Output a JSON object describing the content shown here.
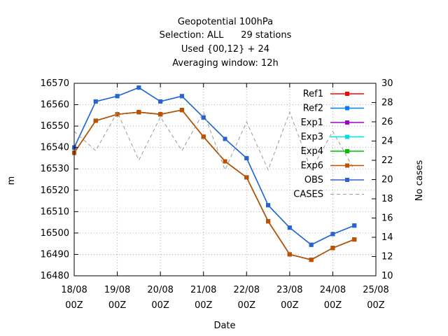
{
  "chart_data": {
    "type": "line",
    "title_lines": [
      "Geopotential 100hPa",
      "Selection: ALL      29 stations",
      "Used {00,12} + 24",
      "Averaging window: 12h"
    ],
    "xlabel": "Date",
    "ylabel": "m",
    "y2label": "No cases",
    "xlim": [
      0,
      14
    ],
    "ylim": [
      16480,
      16570
    ],
    "y2lim": [
      10,
      30
    ],
    "x_ticks": [
      {
        "pos": 0,
        "line1": "18/08",
        "line2": "00Z"
      },
      {
        "pos": 2,
        "line1": "19/08",
        "line2": "00Z"
      },
      {
        "pos": 4,
        "line1": "20/08",
        "line2": "00Z"
      },
      {
        "pos": 6,
        "line1": "21/08",
        "line2": "00Z"
      },
      {
        "pos": 8,
        "line1": "22/08",
        "line2": "00Z"
      },
      {
        "pos": 10,
        "line1": "23/08",
        "line2": "00Z"
      },
      {
        "pos": 12,
        "line1": "24/08",
        "line2": "00Z"
      },
      {
        "pos": 14,
        "line1": "25/08",
        "line2": "00Z"
      }
    ],
    "y_ticks": [
      16480,
      16490,
      16500,
      16510,
      16520,
      16530,
      16540,
      16550,
      16560,
      16570
    ],
    "y2_ticks": [
      10,
      12,
      14,
      16,
      18,
      20,
      22,
      24,
      26,
      28,
      30
    ],
    "x": [
      0,
      1,
      2,
      3,
      4,
      5,
      6,
      7,
      8,
      9,
      10,
      11,
      12,
      13
    ],
    "legend_position": "top-right",
    "series": [
      {
        "name": "Ref1",
        "color": "#ff0000",
        "axis": "left",
        "values": [
          16537.5,
          16552.5,
          16555.5,
          16556.5,
          16555.5,
          16557.5,
          16545,
          16533.5,
          16526,
          16505.5,
          16490,
          16487.5,
          16493,
          16497
        ]
      },
      {
        "name": "Ref2",
        "color": "#0080ff",
        "axis": "left",
        "values": [
          16540,
          16561.5,
          16564,
          16568,
          16561.5,
          16564,
          16554,
          16544,
          16535,
          16513,
          16502.5,
          16494.5,
          16499.5,
          16503.5
        ]
      },
      {
        "name": "Exp1",
        "color": "#a000d0",
        "axis": "left",
        "values": [
          16537.5,
          16552.5,
          16555.5,
          16556.5,
          16555.5,
          16557.5,
          16545,
          16533.5,
          16526,
          16505.5,
          16490,
          16487.5,
          16493,
          16497
        ]
      },
      {
        "name": "Exp3",
        "color": "#00e0e0",
        "axis": "left",
        "values": [
          16540,
          16561.5,
          16564,
          16568,
          16561.5,
          16564,
          16554,
          16544,
          16535,
          16513,
          16502.5,
          16494.5,
          16499.5,
          16503.5
        ]
      },
      {
        "name": "Exp4",
        "color": "#00c000",
        "axis": "left",
        "values": [
          16537.5,
          16552.5,
          16555.5,
          16556.5,
          16555.5,
          16557.5,
          16545,
          16533.5,
          16526,
          16505.5,
          16490,
          16487.5,
          16493,
          16497
        ]
      },
      {
        "name": "Exp6",
        "color": "#c05000",
        "axis": "left",
        "values": [
          16537.5,
          16552.5,
          16555.5,
          16556.5,
          16555.5,
          16557.5,
          16545,
          16533.5,
          16526,
          16505.5,
          16490,
          16487.5,
          16493,
          16497
        ]
      },
      {
        "name": "OBS",
        "color": "#3060d0",
        "axis": "left",
        "values": [
          16540,
          16561.5,
          16564,
          16568,
          16561.5,
          16564,
          16554,
          16544,
          16535,
          16513,
          16502.5,
          16494.5,
          16499.5,
          16503.5
        ]
      },
      {
        "name": "CASES",
        "color": "#999999",
        "axis": "right",
        "dashed": true,
        "values": [
          25,
          23,
          27,
          22,
          26.5,
          23,
          27,
          21,
          26,
          21,
          27,
          21,
          25,
          21
        ]
      }
    ]
  }
}
